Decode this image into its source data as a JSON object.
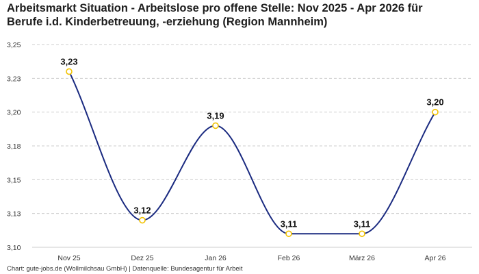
{
  "title_line1": "Arbeitsmarkt Situation - Arbeitslose pro offene Stelle: Nov 2025 - Apr 2026 für",
  "title_line2": "Berufe i.d. Kinderbetreuung, -erziehung (Region Mannheim)",
  "footer": "Chart: gute-jobs.de (Wollmilchsau GmbH) | Datenquelle: Bundesagentur für Arbeit",
  "colors": {
    "line": "#1a2a80",
    "marker_edge": "#f2c200",
    "marker_fill": "#ffffff",
    "grid": "#cccccc"
  },
  "chart_data": {
    "type": "line",
    "categories": [
      "Nov 25",
      "Dez 25",
      "Jan 26",
      "Feb 26",
      "März 26",
      "Apr 26"
    ],
    "values": [
      3.23,
      3.12,
      3.19,
      3.11,
      3.11,
      3.2
    ],
    "data_labels": [
      "3,23",
      "3,12",
      "3,19",
      "3,11",
      "3,11",
      "3,20"
    ],
    "yticks": [
      3.1,
      3.125,
      3.15,
      3.175,
      3.2,
      3.225,
      3.25
    ],
    "ytick_labels": [
      "3,10",
      "3,13",
      "3,15",
      "3,18",
      "3,20",
      "3,23",
      "3,25"
    ],
    "ylim": [
      3.1,
      3.25
    ],
    "grid": true,
    "smooth": true,
    "xlabel": "",
    "ylabel": ""
  }
}
